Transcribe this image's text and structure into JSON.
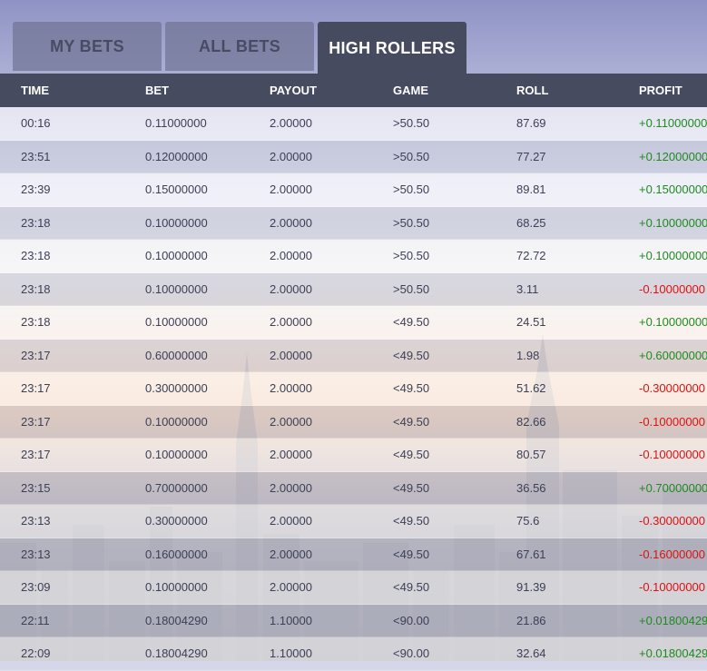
{
  "tabs": [
    {
      "label": "MY BETS",
      "active": false
    },
    {
      "label": "ALL BETS",
      "active": false
    },
    {
      "label": "HIGH ROLLERS",
      "active": true
    }
  ],
  "columns": [
    "TIME",
    "BET",
    "PAYOUT",
    "GAME",
    "ROLL",
    "PROFIT"
  ],
  "rows": [
    {
      "time": "00:16",
      "bet": "0.11000000",
      "payout": "2.00000",
      "game": ">50.50",
      "roll": "87.69",
      "profit": "+0.11000000"
    },
    {
      "time": "23:51",
      "bet": "0.12000000",
      "payout": "2.00000",
      "game": ">50.50",
      "roll": "77.27",
      "profit": "+0.12000000"
    },
    {
      "time": "23:39",
      "bet": "0.15000000",
      "payout": "2.00000",
      "game": ">50.50",
      "roll": "89.81",
      "profit": "+0.15000000"
    },
    {
      "time": "23:18",
      "bet": "0.10000000",
      "payout": "2.00000",
      "game": ">50.50",
      "roll": "68.25",
      "profit": "+0.10000000"
    },
    {
      "time": "23:18",
      "bet": "0.10000000",
      "payout": "2.00000",
      "game": ">50.50",
      "roll": "72.72",
      "profit": "+0.10000000"
    },
    {
      "time": "23:18",
      "bet": "0.10000000",
      "payout": "2.00000",
      "game": ">50.50",
      "roll": "3.11",
      "profit": "-0.10000000"
    },
    {
      "time": "23:18",
      "bet": "0.10000000",
      "payout": "2.00000",
      "game": "<49.50",
      "roll": "24.51",
      "profit": "+0.10000000"
    },
    {
      "time": "23:17",
      "bet": "0.60000000",
      "payout": "2.00000",
      "game": "<49.50",
      "roll": "1.98",
      "profit": "+0.60000000"
    },
    {
      "time": "23:17",
      "bet": "0.30000000",
      "payout": "2.00000",
      "game": "<49.50",
      "roll": "51.62",
      "profit": "-0.30000000"
    },
    {
      "time": "23:17",
      "bet": "0.10000000",
      "payout": "2.00000",
      "game": "<49.50",
      "roll": "82.66",
      "profit": "-0.10000000"
    },
    {
      "time": "23:17",
      "bet": "0.10000000",
      "payout": "2.00000",
      "game": "<49.50",
      "roll": "80.57",
      "profit": "-0.10000000"
    },
    {
      "time": "23:15",
      "bet": "0.70000000",
      "payout": "2.00000",
      "game": "<49.50",
      "roll": "36.56",
      "profit": "+0.70000000"
    },
    {
      "time": "23:13",
      "bet": "0.30000000",
      "payout": "2.00000",
      "game": "<49.50",
      "roll": "75.6",
      "profit": "-0.30000000"
    },
    {
      "time": "23:13",
      "bet": "0.16000000",
      "payout": "2.00000",
      "game": "<49.50",
      "roll": "67.61",
      "profit": "-0.16000000"
    },
    {
      "time": "23:09",
      "bet": "0.10000000",
      "payout": "2.00000",
      "game": "<49.50",
      "roll": "91.39",
      "profit": "-0.10000000"
    },
    {
      "time": "22:11",
      "bet": "0.18004290",
      "payout": "1.10000",
      "game": "<90.00",
      "roll": "21.86",
      "profit": "+0.01800429"
    },
    {
      "time": "22:09",
      "bet": "0.18004290",
      "payout": "1.10000",
      "game": "<90.00",
      "roll": "32.64",
      "profit": "+0.01800429"
    }
  ],
  "colors": {
    "header_bg": "#474b60",
    "profit_positive": "#1f8a1f",
    "profit_negative": "#e01010"
  }
}
